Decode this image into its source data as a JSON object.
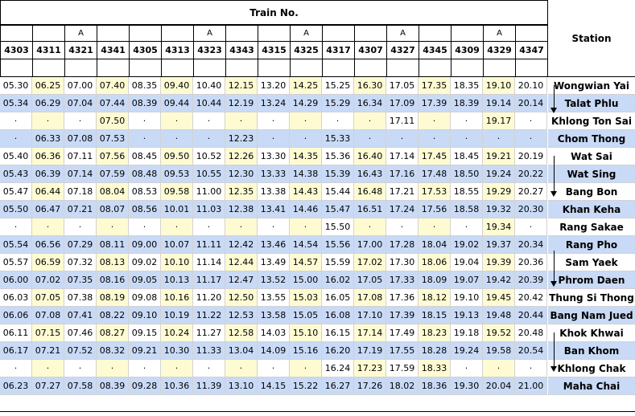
{
  "header": {
    "train_no_label": "Train No.",
    "station_label": "Station"
  },
  "colors": {
    "blue_row": "#c9daf6",
    "yellow_cell": "#fefbd2",
    "grid": "#d2d2d2"
  },
  "trains": [
    {
      "no": "4303",
      "flag": ""
    },
    {
      "no": "4311",
      "flag": ""
    },
    {
      "no": "4321",
      "flag": "A"
    },
    {
      "no": "4341",
      "flag": ""
    },
    {
      "no": "4305",
      "flag": ""
    },
    {
      "no": "4313",
      "flag": ""
    },
    {
      "no": "4323",
      "flag": "A"
    },
    {
      "no": "4343",
      "flag": ""
    },
    {
      "no": "4315",
      "flag": ""
    },
    {
      "no": "4325",
      "flag": "A"
    },
    {
      "no": "4317",
      "flag": ""
    },
    {
      "no": "4307",
      "flag": ""
    },
    {
      "no": "4327",
      "flag": "A"
    },
    {
      "no": "4345",
      "flag": ""
    },
    {
      "no": "4309",
      "flag": ""
    },
    {
      "no": "4329",
      "flag": "A"
    },
    {
      "no": "4347",
      "flag": ""
    }
  ],
  "rows": [
    {
      "station": "Wongwian Yai",
      "times": [
        "05.30",
        "06.25",
        "07.00",
        "07.40",
        "08.35",
        "09.40",
        "10.40",
        "12.15",
        "13.20",
        "14.25",
        "15.25",
        "16.30",
        "17.05",
        "17.35",
        "18.35",
        "19.10",
        "20.10"
      ]
    },
    {
      "station": "Talat Phlu",
      "times": [
        "05.34",
        "06.29",
        "07.04",
        "07.44",
        "08.39",
        "09.44",
        "10.44",
        "12.19",
        "13.24",
        "14.29",
        "15.29",
        "16.34",
        "17.09",
        "17.39",
        "18.39",
        "19.14",
        "20.14"
      ]
    },
    {
      "station": "Khlong Ton Sai",
      "times": [
        "·",
        "·",
        "·",
        "07.50",
        "·",
        "·",
        "·",
        "·",
        "·",
        "·",
        "·",
        "·",
        "17.11",
        "·",
        "·",
        "19.17",
        "·"
      ]
    },
    {
      "station": "Chom Thong",
      "times": [
        "·",
        "06.33",
        "07.08",
        "07.53",
        "·",
        "·",
        "·",
        "12.23",
        "·",
        "·",
        "15.33",
        "·",
        "·",
        "·",
        "·",
        "·",
        "·"
      ]
    },
    {
      "station": "Wat Sai",
      "times": [
        "05.40",
        "06.36",
        "07.11",
        "07.56",
        "08.45",
        "09.50",
        "10.52",
        "12.26",
        "13.30",
        "14.35",
        "15.36",
        "16.40",
        "17.14",
        "17.45",
        "18.45",
        "19.21",
        "20.19"
      ]
    },
    {
      "station": "Wat Sing",
      "times": [
        "05.43",
        "06.39",
        "07.14",
        "07.59",
        "08.48",
        "09.53",
        "10.55",
        "12.30",
        "13.33",
        "14.38",
        "15.39",
        "16.43",
        "17.16",
        "17.48",
        "18.50",
        "19.24",
        "20.22"
      ]
    },
    {
      "station": "Bang Bon",
      "times": [
        "05.47",
        "06.44",
        "07.18",
        "08.04",
        "08.53",
        "09.58",
        "11.00",
        "12.35",
        "13.38",
        "14.43",
        "15.44",
        "16.48",
        "17.21",
        "17.53",
        "18.55",
        "19.29",
        "20.27"
      ]
    },
    {
      "station": "Khan Keha",
      "times": [
        "05.50",
        "06.47",
        "07.21",
        "08.07",
        "08.56",
        "10.01",
        "11.03",
        "12.38",
        "13.41",
        "14.46",
        "15.47",
        "16.51",
        "17.24",
        "17.56",
        "18.58",
        "19.32",
        "20.30"
      ]
    },
    {
      "station": "Rang Sakae",
      "times": [
        "·",
        "·",
        "·",
        "·",
        "·",
        "·",
        "·",
        "·",
        "·",
        "·",
        "15.50",
        "·",
        "·",
        "·",
        "·",
        "19.34",
        "·"
      ]
    },
    {
      "station": "Rang Pho",
      "times": [
        "05.54",
        "06.56",
        "07.29",
        "08.11",
        "09.00",
        "10.07",
        "11.11",
        "12.42",
        "13.46",
        "14.54",
        "15.56",
        "17.00",
        "17.28",
        "18.04",
        "19.02",
        "19.37",
        "20.34"
      ]
    },
    {
      "station": "Sam Yaek",
      "times": [
        "05.57",
        "06.59",
        "07.32",
        "08.13",
        "09.02",
        "10.10",
        "11.14",
        "12.44",
        "13.49",
        "14.57",
        "15.59",
        "17.02",
        "17.30",
        "18.06",
        "19.04",
        "19.39",
        "20.36"
      ]
    },
    {
      "station": "Phrom Daen",
      "times": [
        "06.00",
        "07.02",
        "07.35",
        "08.16",
        "09.05",
        "10.13",
        "11.17",
        "12.47",
        "13.52",
        "15.00",
        "16.02",
        "17.05",
        "17.33",
        "18.09",
        "19.07",
        "19.42",
        "20.39"
      ]
    },
    {
      "station": "Thung Si Thong",
      "times": [
        "06.03",
        "07.05",
        "07.38",
        "08.19",
        "09.08",
        "10.16",
        "11.20",
        "12.50",
        "13.55",
        "15.03",
        "16.05",
        "17.08",
        "17.36",
        "18.12",
        "19.10",
        "19.45",
        "20.42"
      ]
    },
    {
      "station": "Bang Nam Jued",
      "times": [
        "06.06",
        "07.08",
        "07.41",
        "08.22",
        "09.10",
        "10.19",
        "11.22",
        "12.53",
        "13.58",
        "15.05",
        "16.08",
        "17.10",
        "17.39",
        "18.15",
        "19.13",
        "19.48",
        "20.44"
      ]
    },
    {
      "station": "Khok Khwai",
      "times": [
        "06.11",
        "07.15",
        "07.46",
        "08.27",
        "09.15",
        "10.24",
        "11.27",
        "12.58",
        "14.03",
        "15.10",
        "16.15",
        "17.14",
        "17.49",
        "18.23",
        "19.18",
        "19.52",
        "20.48"
      ]
    },
    {
      "station": "Ban Khom",
      "times": [
        "06.17",
        "07.21",
        "07.52",
        "08.32",
        "09.21",
        "10.30",
        "11.33",
        "13.04",
        "14.09",
        "15.16",
        "16.20",
        "17.19",
        "17.55",
        "18.28",
        "19.24",
        "19.58",
        "20.54"
      ]
    },
    {
      "station": "Khlong Chak",
      "times": [
        "·",
        "·",
        "·",
        "·",
        "·",
        "·",
        "·",
        "·",
        "·",
        "·",
        "16.24",
        "17.23",
        "17.59",
        "18.33",
        "·",
        "·",
        "·"
      ]
    },
    {
      "station": "Maha Chai",
      "times": [
        "06.23",
        "07.27",
        "07.58",
        "08.39",
        "09.28",
        "10.36",
        "11.39",
        "13.10",
        "14.15",
        "15.22",
        "16.27",
        "17.26",
        "18.02",
        "18.36",
        "19.30",
        "20.04",
        "21.00"
      ]
    }
  ]
}
